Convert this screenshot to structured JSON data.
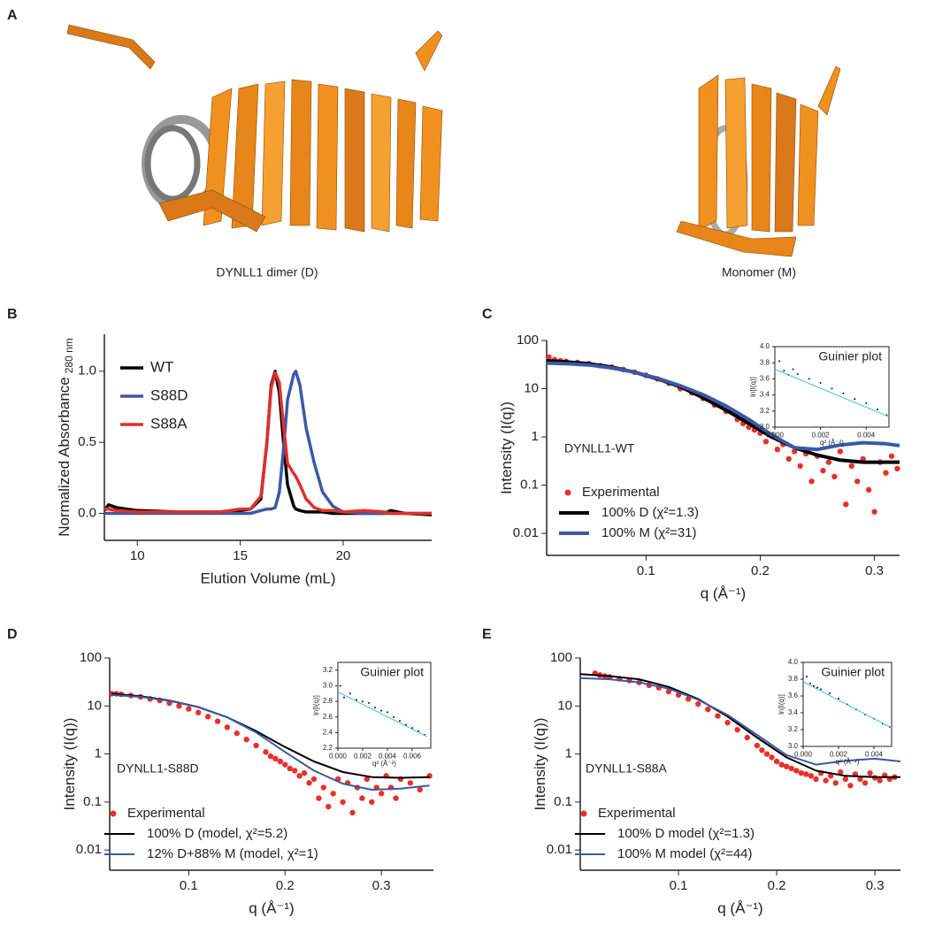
{
  "structures": {
    "panel": "A",
    "captions": [
      "DYNLL1 dimer (D)",
      "Monomer (M)"
    ]
  },
  "chart_data": [
    {
      "type": "line",
      "panel": "B",
      "xlabel": "Elution Volume (mL)",
      "ylabel": "Normalized Absorbance",
      "ylabel_sub": "280 nm",
      "log_y": false,
      "legend": "upper left",
      "xlim": [
        8.4,
        24.3
      ],
      "ylim": [
        -0.19,
        1.26
      ],
      "xticks": [
        10,
        15,
        20
      ],
      "yticks": [
        {
          "value": 0,
          "label": "0.0"
        },
        0.5,
        {
          "value": 1,
          "label": "1.0"
        }
      ],
      "x": [
        8.4,
        8.6,
        9,
        10,
        12,
        14,
        15,
        15.5,
        16,
        16.3,
        16.5,
        16.7,
        16.9,
        17.1,
        17.3,
        17.6,
        17.7,
        17.9,
        18.2,
        18.6,
        19,
        19.5,
        20,
        21,
        22,
        22.3,
        23,
        24.3
      ],
      "series": [
        {
          "name": "WT",
          "color": "#000000",
          "type": "line",
          "width": 3.5,
          "values": [
            0.02,
            0.06,
            0.04,
            0.02,
            0.01,
            0.01,
            0.02,
            0.03,
            0.1,
            0.5,
            0.9,
            1.0,
            0.85,
            0.5,
            0.2,
            0.05,
            0.03,
            0.02,
            0.01,
            0.01,
            0.01,
            0,
            0,
            0,
            0,
            0.02,
            0,
            -0.01
          ]
        },
        {
          "name": "S88D",
          "color": "#3b58a8",
          "type": "line",
          "width": 3.5,
          "values": [
            0,
            0,
            0,
            0,
            0,
            0,
            0,
            0,
            0.02,
            0.03,
            0.03,
            0.04,
            0.15,
            0.45,
            0.8,
            0.98,
            1.0,
            0.9,
            0.6,
            0.35,
            0.15,
            0.05,
            0.01,
            0,
            0,
            0,
            0,
            0
          ]
        },
        {
          "name": "S88A",
          "color": "#e0302a",
          "type": "line",
          "width": 3.5,
          "values": [
            0.03,
            0.03,
            0.02,
            0.01,
            0.01,
            0.01,
            0.03,
            0.03,
            0.12,
            0.5,
            0.88,
            0.99,
            0.92,
            0.62,
            0.35,
            0.28,
            0.26,
            0.2,
            0.1,
            0.04,
            0.02,
            0.02,
            0.01,
            0.02,
            0.01,
            0,
            0,
            0
          ]
        }
      ]
    },
    {
      "type": "line",
      "panel": "C",
      "xlabel": "q (Å⁻¹)",
      "ylabel": "Intensity (I(q))",
      "log_y": true,
      "legend": "lower left",
      "annotation": "DYNLL1-WT",
      "xlim": [
        0.013,
        0.322
      ],
      "ylim": [
        0.0035,
        100
      ],
      "xticks": [
        0.1,
        0.2,
        0.3
      ],
      "yticks": [
        0.01,
        0.1,
        1,
        10,
        100
      ],
      "series": [
        {
          "name": "Experimental",
          "color": "#e8302a",
          "type": "scatter",
          "x": [
            0.015,
            0.02,
            0.025,
            0.03,
            0.04,
            0.05,
            0.06,
            0.07,
            0.08,
            0.09,
            0.1,
            0.11,
            0.12,
            0.13,
            0.14,
            0.15,
            0.16,
            0.17,
            0.18,
            0.185,
            0.19,
            0.195,
            0.2,
            0.205,
            0.21,
            0.215,
            0.22,
            0.225,
            0.23,
            0.235,
            0.24,
            0.245,
            0.25,
            0.255,
            0.26,
            0.265,
            0.27,
            0.275,
            0.28,
            0.285,
            0.29,
            0.295,
            0.3,
            0.305,
            0.31,
            0.315,
            0.32
          ],
          "values": [
            45,
            40,
            38,
            37,
            35,
            33,
            30,
            28,
            25,
            22,
            19,
            16,
            13,
            10,
            8.2,
            6.3,
            4.6,
            3.4,
            2.3,
            1.9,
            1.6,
            1.4,
            1.2,
            0.8,
            1.1,
            0.55,
            0.7,
            0.35,
            0.5,
            0.25,
            0.45,
            0.12,
            0.4,
            0.2,
            0.3,
            0.15,
            0.5,
            0.04,
            0.25,
            0.12,
            0.35,
            0.08,
            0.028,
            0.3,
            0.18,
            0.4,
            0.22
          ]
        },
        {
          "name": "100% D (χ²=1.3)",
          "color": "#000000",
          "type": "line",
          "width": 4,
          "x": [
            0.013,
            0.03,
            0.05,
            0.07,
            0.09,
            0.11,
            0.13,
            0.15,
            0.17,
            0.19,
            0.21,
            0.23,
            0.25,
            0.27,
            0.29,
            0.31,
            0.322
          ],
          "values": [
            38,
            36,
            33,
            28,
            22,
            16,
            11,
            6.5,
            3.6,
            1.9,
            1.0,
            0.6,
            0.42,
            0.33,
            0.3,
            0.3,
            0.3
          ]
        },
        {
          "name": "100% M (χ²=31)",
          "color": "#3b58a8",
          "type": "line",
          "width": 4,
          "x": [
            0.013,
            0.03,
            0.05,
            0.07,
            0.09,
            0.11,
            0.13,
            0.15,
            0.17,
            0.19,
            0.21,
            0.23,
            0.25,
            0.27,
            0.29,
            0.31,
            0.322
          ],
          "values": [
            34,
            33,
            31,
            27,
            22,
            16.5,
            11.5,
            7.5,
            4.4,
            2.3,
            1.1,
            0.6,
            0.55,
            0.68,
            0.76,
            0.72,
            0.66
          ]
        }
      ],
      "inset": {
        "type": "line",
        "title": "Guinier plot",
        "xlabel": "q² (Å⁻²)",
        "ylabel": "ln[I(q)]",
        "log_y": false,
        "xlim": [
          0,
          0.005
        ],
        "ylim": [
          3.0,
          4.0
        ],
        "xticks": [
          {
            "value": 0,
            "label": "0.000"
          },
          0.002,
          0.004
        ],
        "yticks": [
          {
            "value": 3,
            "label": "3.0"
          },
          3.2,
          3.4,
          3.6,
          3.8,
          {
            "value": 4,
            "label": "4.0"
          }
        ],
        "series": [
          {
            "color": "#111111",
            "type": "scatter",
            "x": [
              0.0002,
              0.0004,
              0.0006,
              0.0008,
              0.001,
              0.0015,
              0.002,
              0.0025,
              0.003,
              0.0035,
              0.004,
              0.0045,
              0.0049
            ],
            "values": [
              3.82,
              3.7,
              3.65,
              3.72,
              3.66,
              3.6,
              3.55,
              3.48,
              3.42,
              3.35,
              3.3,
              3.22,
              3.15
            ]
          },
          {
            "color": "#3fc1c9",
            "type": "line",
            "width": 1,
            "x": [
              0,
              0.005
            ],
            "values": [
              3.72,
              3.13
            ]
          }
        ]
      }
    },
    {
      "type": "line",
      "panel": "D",
      "xlabel": "q (Å⁻¹)",
      "ylabel": "Intensity (I(q))",
      "log_y": true,
      "legend": "lower left",
      "annotation": "DYNLL1-S88D",
      "xlim": [
        0.018,
        0.354
      ],
      "ylim": [
        0.0038,
        100
      ],
      "xticks": [
        0.1,
        0.2,
        0.3
      ],
      "yticks": [
        0.01,
        0.1,
        1,
        10,
        100
      ],
      "series": [
        {
          "name": "Experimental",
          "color": "#e8302a",
          "type": "scatter",
          "x": [
            0.015,
            0.02,
            0.025,
            0.03,
            0.04,
            0.05,
            0.06,
            0.07,
            0.08,
            0.09,
            0.1,
            0.11,
            0.12,
            0.13,
            0.14,
            0.15,
            0.16,
            0.17,
            0.18,
            0.185,
            0.19,
            0.195,
            0.2,
            0.205,
            0.21,
            0.215,
            0.22,
            0.225,
            0.23,
            0.235,
            0.24,
            0.245,
            0.25,
            0.255,
            0.26,
            0.265,
            0.27,
            0.275,
            0.28,
            0.285,
            0.29,
            0.295,
            0.3,
            0.305,
            0.31,
            0.315,
            0.32,
            0.33,
            0.34,
            0.35
          ],
          "values": [
            20,
            18,
            18,
            17.5,
            16.5,
            15.5,
            14,
            13,
            11.5,
            10,
            8.7,
            7.3,
            6,
            4.8,
            3.6,
            2.7,
            2,
            1.5,
            1.1,
            0.9,
            0.8,
            0.7,
            0.6,
            0.5,
            0.45,
            0.35,
            0.4,
            0.25,
            0.3,
            0.12,
            0.2,
            0.08,
            0.15,
            0.3,
            0.1,
            0.25,
            0.06,
            0.2,
            0.12,
            0.3,
            0.1,
            0.2,
            0.15,
            0.35,
            0.2,
            0.12,
            0.3,
            0.25,
            0.18,
            0.35
          ]
        },
        {
          "name": "100% D (model, χ²=5.2)",
          "color": "#000000",
          "type": "line",
          "width": 2,
          "x": [
            0.02,
            0.05,
            0.08,
            0.11,
            0.14,
            0.17,
            0.2,
            0.23,
            0.26,
            0.29,
            0.32,
            0.35
          ],
          "values": [
            18,
            16,
            13,
            9.5,
            5.8,
            3,
            1.4,
            0.7,
            0.42,
            0.33,
            0.32,
            0.33
          ]
        },
        {
          "name": "12% D+88% M (model, χ²=1)",
          "color": "#3b58a8",
          "type": "line",
          "width": 2,
          "x": [
            0.02,
            0.05,
            0.08,
            0.11,
            0.14,
            0.17,
            0.2,
            0.23,
            0.26,
            0.29,
            0.32,
            0.35
          ],
          "values": [
            17,
            15.5,
            12.8,
            9.5,
            5.8,
            2.8,
            1.1,
            0.45,
            0.24,
            0.18,
            0.19,
            0.22
          ]
        }
      ],
      "inset": {
        "type": "line",
        "title": "Guinier plot",
        "xlabel": "q² (Å⁻²)",
        "ylabel": "ln[I(q)]",
        "log_y": false,
        "xlim": [
          0,
          0.0075
        ],
        "ylim": [
          2.2,
          3.3
        ],
        "xticks": [
          {
            "value": 0,
            "label": "0.000"
          },
          0.002,
          0.004,
          0.006
        ],
        "yticks": [
          2.2,
          2.4,
          2.6,
          2.8,
          {
            "value": 3,
            "label": "3.0"
          },
          3.2
        ],
        "series": [
          {
            "color": "#111111",
            "type": "scatter",
            "x": [
              0.0002,
              0.0005,
              0.001,
              0.0015,
              0.002,
              0.0025,
              0.003,
              0.0035,
              0.004,
              0.0045,
              0.005,
              0.0055,
              0.006,
              0.0065,
              0.007
            ],
            "values": [
              3.0,
              2.85,
              2.9,
              2.82,
              2.8,
              2.78,
              2.72,
              2.68,
              2.66,
              2.6,
              2.55,
              2.5,
              2.46,
              2.42,
              2.37
            ]
          },
          {
            "color": "#3fc1c9",
            "type": "line",
            "width": 1,
            "x": [
              0,
              0.0072
            ],
            "values": [
              2.92,
              2.35
            ]
          }
        ]
      }
    },
    {
      "type": "line",
      "panel": "E",
      "xlabel": "q (Å⁻¹)",
      "ylabel": "Intensity (I(q))",
      "log_y": true,
      "legend": "lower left",
      "annotation": "DYNLL1-S88A",
      "xlim": [
        0,
        0.326
      ],
      "ylim": [
        0.0038,
        100
      ],
      "xticks": [
        0.1,
        0.2,
        0.3
      ],
      "yticks": [
        0.01,
        0.1,
        1,
        10,
        100
      ],
      "series": [
        {
          "name": "Experimental",
          "color": "#e8302a",
          "type": "scatter",
          "x": [
            0.015,
            0.02,
            0.025,
            0.03,
            0.04,
            0.05,
            0.06,
            0.07,
            0.08,
            0.09,
            0.1,
            0.11,
            0.12,
            0.13,
            0.14,
            0.15,
            0.16,
            0.17,
            0.18,
            0.185,
            0.19,
            0.195,
            0.2,
            0.205,
            0.21,
            0.215,
            0.22,
            0.225,
            0.23,
            0.235,
            0.24,
            0.245,
            0.25,
            0.255,
            0.26,
            0.265,
            0.27,
            0.275,
            0.28,
            0.285,
            0.29,
            0.295,
            0.3,
            0.305,
            0.31,
            0.315,
            0.32
          ],
          "values": [
            48,
            44,
            42,
            40,
            37,
            34,
            31,
            27,
            24,
            20,
            17,
            14,
            11,
            8.5,
            6.2,
            4.5,
            3.2,
            2.2,
            1.5,
            1.2,
            1.0,
            0.85,
            0.7,
            0.6,
            0.55,
            0.5,
            0.45,
            0.4,
            0.38,
            0.35,
            0.3,
            0.4,
            0.28,
            0.35,
            0.25,
            0.42,
            0.3,
            0.22,
            0.38,
            0.3,
            0.25,
            0.4,
            0.32,
            0.28,
            0.36,
            0.3,
            0.33
          ]
        },
        {
          "name": "100% D model (χ²=1.3)",
          "color": "#000000",
          "type": "line",
          "width": 2,
          "x": [
            0,
            0.03,
            0.06,
            0.09,
            0.12,
            0.15,
            0.18,
            0.21,
            0.24,
            0.27,
            0.3,
            0.326
          ],
          "values": [
            46,
            42,
            36,
            25,
            14,
            6,
            2.2,
            0.85,
            0.45,
            0.35,
            0.33,
            0.33
          ]
        },
        {
          "name": "100% M model (χ²=44)",
          "color": "#3b58a8",
          "type": "line",
          "width": 2,
          "x": [
            0,
            0.03,
            0.06,
            0.09,
            0.12,
            0.15,
            0.18,
            0.21,
            0.24,
            0.27,
            0.3,
            0.326
          ],
          "values": [
            38,
            36,
            31,
            23,
            13.5,
            6.5,
            2.5,
            0.95,
            0.6,
            0.72,
            0.8,
            0.7
          ]
        }
      ],
      "inset": {
        "type": "line",
        "title": "Guinier plot",
        "xlabel": "q² (Å⁻²)",
        "ylabel": "ln[I(q)]",
        "log_y": false,
        "xlim": [
          0,
          0.005
        ],
        "ylim": [
          3.0,
          4.0
        ],
        "xticks": [
          {
            "value": 0,
            "label": "0.000"
          },
          0.002,
          0.004
        ],
        "yticks": [
          {
            "value": 3,
            "label": "3.0"
          },
          3.2,
          3.4,
          3.6,
          3.8,
          {
            "value": 4,
            "label": "4.0"
          }
        ],
        "series": [
          {
            "color": "#111111",
            "type": "scatter",
            "x": [
              0.0002,
              0.0004,
              0.0006,
              0.0008,
              0.001,
              0.0015,
              0.002,
              0.0025,
              0.003,
              0.0035,
              0.004,
              0.0045,
              0.0049
            ],
            "values": [
              3.83,
              3.75,
              3.72,
              3.7,
              3.68,
              3.63,
              3.57,
              3.5,
              3.44,
              3.38,
              3.33,
              3.27,
              3.23
            ]
          },
          {
            "color": "#3fc1c9",
            "type": "line",
            "width": 1,
            "x": [
              0,
              0.005
            ],
            "values": [
              3.77,
              3.22
            ]
          }
        ]
      }
    }
  ]
}
